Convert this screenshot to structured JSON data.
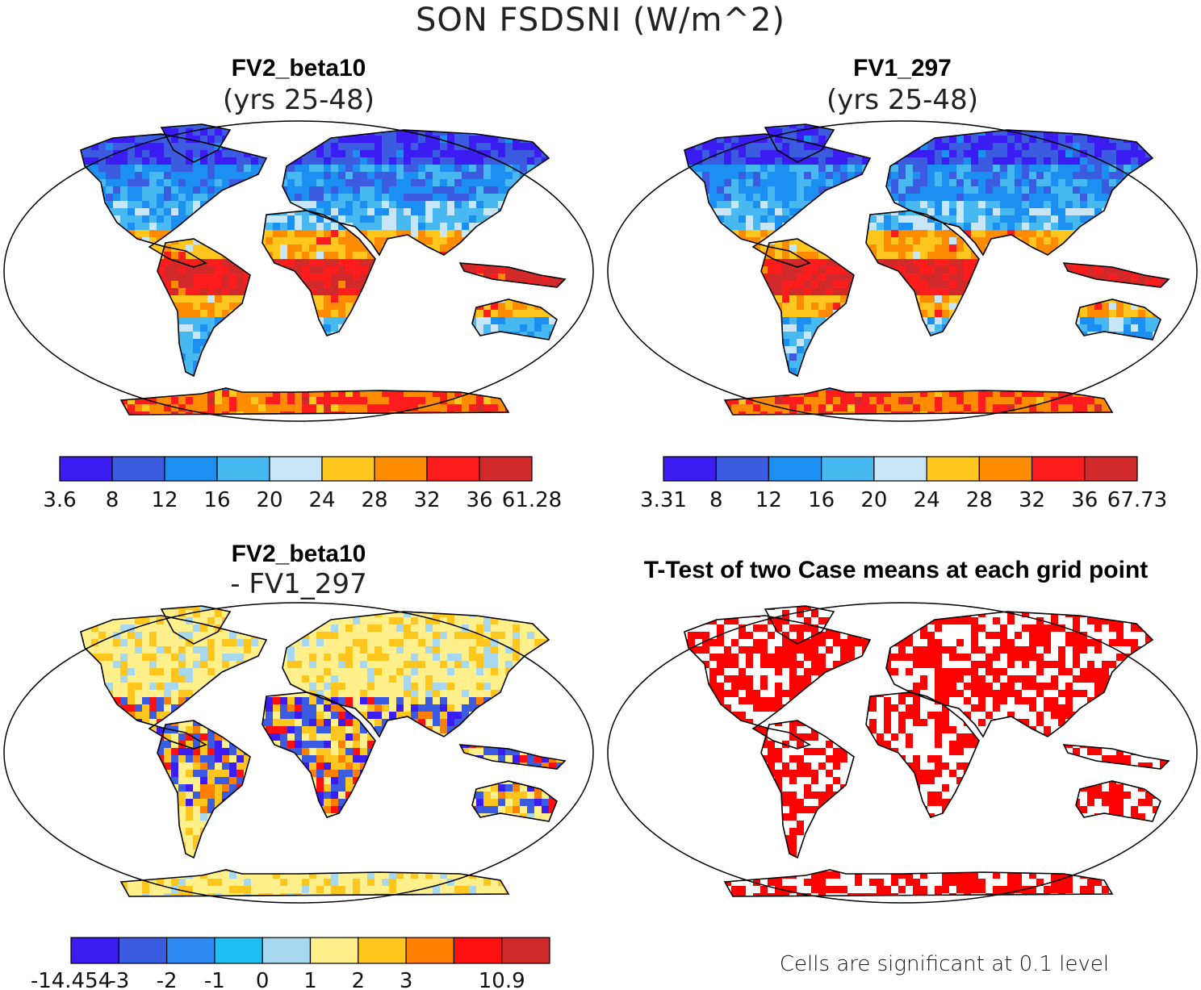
{
  "figure": {
    "title": "SON FSDSNI (W/m^2)",
    "colors": {
      "ocean": "#ffffff",
      "outline": "#000000",
      "land_fallback": "#dddddd"
    }
  },
  "panels": [
    {
      "id": "top-left",
      "title": "FV2_beta10",
      "subtitle": "(yrs 25-48)",
      "colorbar": {
        "colors": [
          "#3b1cf2",
          "#3b5be0",
          "#1c8ff2",
          "#48b8f0",
          "#c8e6f8",
          "#ffc61e",
          "#ff8c00",
          "#ff1c1c",
          "#d22a2a"
        ],
        "labels": [
          "3.6",
          "8",
          "12",
          "16",
          "20",
          "24",
          "28",
          "32",
          "36",
          "61.28"
        ]
      }
    },
    {
      "id": "top-right",
      "title": "FV1_297",
      "subtitle": "(yrs 25-48)",
      "colorbar": {
        "colors": [
          "#3b1cf2",
          "#3b5be0",
          "#1c8ff2",
          "#48b8f0",
          "#c8e6f8",
          "#ffc61e",
          "#ff8c00",
          "#ff1c1c",
          "#d22a2a"
        ],
        "labels": [
          "3.31",
          "8",
          "12",
          "16",
          "20",
          "24",
          "28",
          "32",
          "36",
          "67.73"
        ]
      }
    },
    {
      "id": "bottom-left",
      "title": "FV2_beta10",
      "subtitle": "- FV1_297",
      "colorbar": {
        "colors": [
          "#3b1cf2",
          "#3b5be0",
          "#2e8af2",
          "#1cc0f2",
          "#a8d8f0",
          "#fff08c",
          "#ffc61e",
          "#ff8000",
          "#ff1010",
          "#d22a2a"
        ],
        "labels": [
          "-14.454",
          "-3",
          "-2",
          "-1",
          "0",
          "1",
          "2",
          "3",
          "",
          "10.9"
        ]
      }
    },
    {
      "id": "bottom-right",
      "title": "T-Test of two Case means at each grid point",
      "subtitle": "",
      "footnote": "Cells are significant at 0.1 level",
      "sig_color": "#ff0000"
    }
  ]
}
